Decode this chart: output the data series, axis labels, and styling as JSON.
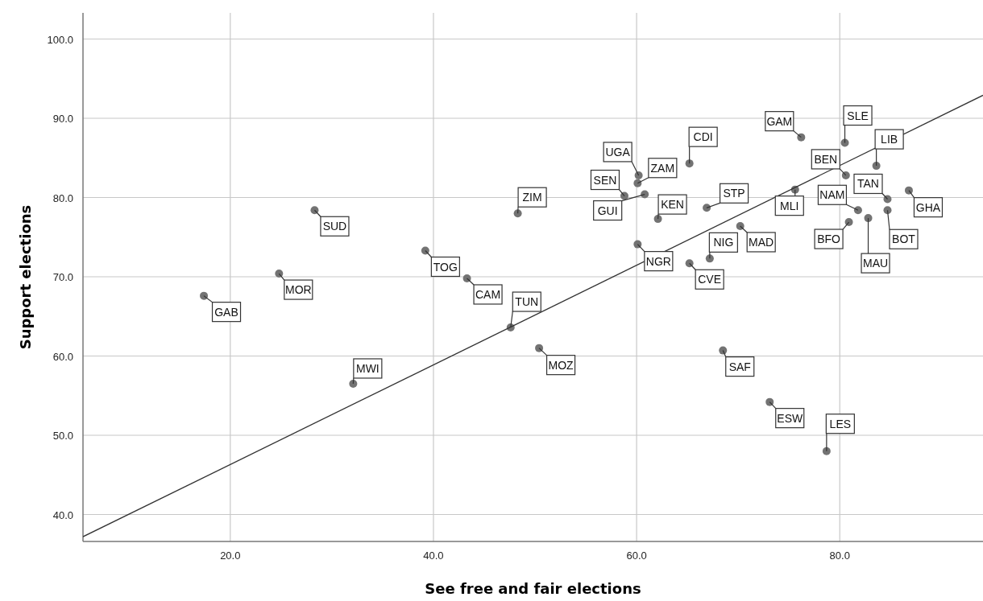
{
  "chart_data": {
    "type": "scatter",
    "xlabel": "See free and fair elections",
    "ylabel": "Support elections",
    "xlim": [
      5.5,
      94.1
    ],
    "ylim": [
      36.6,
      103.3
    ],
    "xticks": [
      {
        "value": 20,
        "label": "20.0"
      },
      {
        "value": 40,
        "label": "40.0"
      },
      {
        "value": 60,
        "label": "60.0"
      },
      {
        "value": 80,
        "label": "80.0"
      }
    ],
    "yticks": [
      {
        "value": 40,
        "label": "40.0"
      },
      {
        "value": 50,
        "label": "50.0"
      },
      {
        "value": 60,
        "label": "60.0"
      },
      {
        "value": 70,
        "label": "70.0"
      },
      {
        "value": 80,
        "label": "80.0"
      },
      {
        "value": 90,
        "label": "90.0"
      },
      {
        "value": 100,
        "label": "100.0"
      }
    ],
    "grid": true,
    "marker": "circle",
    "series": [
      {
        "color": "#737373",
        "x": [
          17.4,
          24.8,
          28.3,
          32.1,
          39.2,
          43.3,
          47.6,
          48.3,
          50.4,
          58.8,
          60.8,
          60.2,
          60.1,
          65.2,
          62.1,
          66.9,
          60.1,
          67.2,
          65.2,
          70.2,
          76.2,
          75.6,
          80.5,
          80.6,
          83.6,
          84.7,
          86.8,
          81.8,
          80.9,
          82.8,
          84.7,
          68.5,
          73.1,
          78.7
        ],
        "values": [
          67.6,
          70.4,
          78.4,
          56.5,
          73.3,
          69.8,
          63.6,
          78.0,
          61.0,
          80.2,
          80.4,
          82.8,
          81.8,
          84.3,
          77.3,
          78.7,
          74.1,
          72.3,
          71.7,
          76.4,
          87.6,
          81.0,
          86.9,
          82.8,
          84.0,
          79.8,
          80.9,
          78.4,
          76.9,
          77.4,
          78.4,
          60.7,
          54.2,
          48.0
        ]
      },
      {
        "type": "line",
        "color": "#333333",
        "marker": "none",
        "x": [
          5.5,
          94.1
        ],
        "values": [
          37.2,
          92.9
        ]
      }
    ],
    "annotations": [
      {
        "text": "GAB",
        "x": 17.4,
        "y": 67.6
      },
      {
        "text": "MOR",
        "x": 24.8,
        "y": 70.4
      },
      {
        "text": "SUD",
        "x": 28.3,
        "y": 78.4
      },
      {
        "text": "MWI",
        "x": 32.1,
        "y": 56.5
      },
      {
        "text": "TOG",
        "x": 39.2,
        "y": 73.3
      },
      {
        "text": "CAM",
        "x": 43.3,
        "y": 69.8
      },
      {
        "text": "TUN",
        "x": 47.6,
        "y": 63.6
      },
      {
        "text": "ZIM",
        "x": 48.3,
        "y": 78.0
      },
      {
        "text": "MOZ",
        "x": 50.4,
        "y": 61.0
      },
      {
        "text": "SEN",
        "x": 58.8,
        "y": 80.2
      },
      {
        "text": "GUI",
        "x": 60.8,
        "y": 80.4
      },
      {
        "text": "UGA",
        "x": 60.2,
        "y": 82.8
      },
      {
        "text": "ZAM",
        "x": 60.1,
        "y": 81.8
      },
      {
        "text": "CDI",
        "x": 65.2,
        "y": 84.3
      },
      {
        "text": "KEN",
        "x": 62.1,
        "y": 77.3
      },
      {
        "text": "STP",
        "x": 66.9,
        "y": 78.7
      },
      {
        "text": "NGR",
        "x": 60.1,
        "y": 74.1
      },
      {
        "text": "NIG",
        "x": 67.2,
        "y": 72.3
      },
      {
        "text": "CVE",
        "x": 65.2,
        "y": 71.7
      },
      {
        "text": "MAD",
        "x": 70.2,
        "y": 76.4
      },
      {
        "text": "GAM",
        "x": 76.2,
        "y": 87.6
      },
      {
        "text": "MLI",
        "x": 75.6,
        "y": 81.0
      },
      {
        "text": "SLE",
        "x": 80.5,
        "y": 86.9
      },
      {
        "text": "BEN",
        "x": 80.6,
        "y": 82.8
      },
      {
        "text": "LIB",
        "x": 83.6,
        "y": 84.0
      },
      {
        "text": "TAN",
        "x": 84.7,
        "y": 79.8
      },
      {
        "text": "GHA",
        "x": 86.8,
        "y": 80.9
      },
      {
        "text": "NAM",
        "x": 81.8,
        "y": 78.4
      },
      {
        "text": "BFO",
        "x": 80.9,
        "y": 76.9
      },
      {
        "text": "MAU",
        "x": 82.8,
        "y": 77.4
      },
      {
        "text": "BOT",
        "x": 84.7,
        "y": 78.4
      },
      {
        "text": "SAF",
        "x": 68.5,
        "y": 60.7
      },
      {
        "text": "ESW",
        "x": 73.1,
        "y": 54.2
      },
      {
        "text": "LES",
        "x": 78.7,
        "y": 48.0
      }
    ]
  }
}
